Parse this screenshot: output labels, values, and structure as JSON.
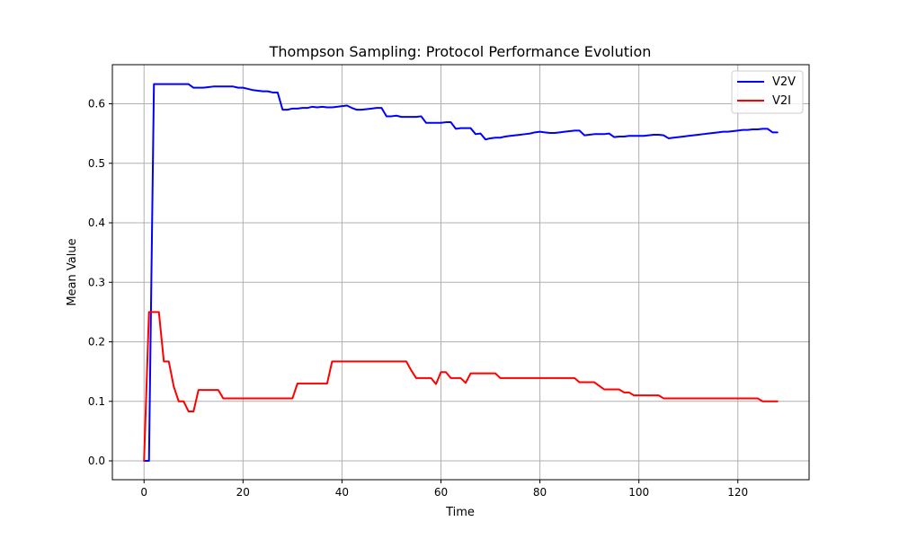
{
  "chart_data": {
    "type": "line",
    "title": "Thompson Sampling: Protocol Performance Evolution",
    "xlabel": "Time",
    "ylabel": "Mean Value",
    "xlim": [
      -6.4,
      134.4
    ],
    "ylim": [
      -0.0317,
      0.6657
    ],
    "xticks": [
      0,
      20,
      40,
      60,
      80,
      100,
      120
    ],
    "xtick_labels": [
      "0",
      "20",
      "40",
      "60",
      "80",
      "100",
      "120"
    ],
    "yticks": [
      0.0,
      0.1,
      0.2,
      0.3,
      0.4,
      0.5,
      0.6
    ],
    "ytick_labels": [
      "0.0",
      "0.1",
      "0.2",
      "0.3",
      "0.4",
      "0.5",
      "0.6"
    ],
    "grid": true,
    "legend_position": "top-right",
    "series": [
      {
        "name": "V2V",
        "color": "#0000ff",
        "points": [
          [
            0,
            0.0
          ],
          [
            1,
            0.0
          ],
          [
            2,
            0.633
          ],
          [
            3,
            0.633
          ],
          [
            4,
            0.633
          ],
          [
            5,
            0.633
          ],
          [
            6,
            0.633
          ],
          [
            7,
            0.633
          ],
          [
            8,
            0.633
          ],
          [
            9,
            0.633
          ],
          [
            10,
            0.627
          ],
          [
            11,
            0.627
          ],
          [
            12,
            0.627
          ],
          [
            13,
            0.628
          ],
          [
            14,
            0.629
          ],
          [
            15,
            0.629
          ],
          [
            16,
            0.629
          ],
          [
            17,
            0.629
          ],
          [
            18,
            0.629
          ],
          [
            19,
            0.627
          ],
          [
            20,
            0.627
          ],
          [
            21,
            0.625
          ],
          [
            22,
            0.623
          ],
          [
            23,
            0.622
          ],
          [
            24,
            0.621
          ],
          [
            25,
            0.621
          ],
          [
            26,
            0.619
          ],
          [
            27,
            0.619
          ],
          [
            28,
            0.59
          ],
          [
            29,
            0.59
          ],
          [
            30,
            0.592
          ],
          [
            31,
            0.592
          ],
          [
            32,
            0.593
          ],
          [
            33,
            0.593
          ],
          [
            34,
            0.595
          ],
          [
            35,
            0.594
          ],
          [
            36,
            0.595
          ],
          [
            37,
            0.594
          ],
          [
            38,
            0.594
          ],
          [
            39,
            0.595
          ],
          [
            40,
            0.596
          ],
          [
            41,
            0.597
          ],
          [
            42,
            0.593
          ],
          [
            43,
            0.59
          ],
          [
            44,
            0.59
          ],
          [
            45,
            0.591
          ],
          [
            46,
            0.592
          ],
          [
            47,
            0.593
          ],
          [
            48,
            0.593
          ],
          [
            49,
            0.579
          ],
          [
            50,
            0.579
          ],
          [
            51,
            0.58
          ],
          [
            52,
            0.578
          ],
          [
            53,
            0.578
          ],
          [
            54,
            0.578
          ],
          [
            55,
            0.578
          ],
          [
            56,
            0.579
          ],
          [
            57,
            0.568
          ],
          [
            58,
            0.568
          ],
          [
            59,
            0.568
          ],
          [
            60,
            0.568
          ],
          [
            61,
            0.569
          ],
          [
            62,
            0.569
          ],
          [
            63,
            0.558
          ],
          [
            64,
            0.559
          ],
          [
            65,
            0.559
          ],
          [
            66,
            0.559
          ],
          [
            67,
            0.549
          ],
          [
            68,
            0.55
          ],
          [
            69,
            0.54
          ],
          [
            70,
            0.542
          ],
          [
            71,
            0.543
          ],
          [
            72,
            0.543
          ],
          [
            73,
            0.545
          ],
          [
            74,
            0.546
          ],
          [
            75,
            0.547
          ],
          [
            76,
            0.548
          ],
          [
            77,
            0.549
          ],
          [
            78,
            0.55
          ],
          [
            79,
            0.552
          ],
          [
            80,
            0.553
          ],
          [
            81,
            0.552
          ],
          [
            82,
            0.551
          ],
          [
            83,
            0.551
          ],
          [
            84,
            0.552
          ],
          [
            85,
            0.553
          ],
          [
            86,
            0.554
          ],
          [
            87,
            0.555
          ],
          [
            88,
            0.555
          ],
          [
            89,
            0.547
          ],
          [
            90,
            0.548
          ],
          [
            91,
            0.549
          ],
          [
            92,
            0.549
          ],
          [
            93,
            0.549
          ],
          [
            94,
            0.55
          ],
          [
            95,
            0.544
          ],
          [
            96,
            0.545
          ],
          [
            97,
            0.545
          ],
          [
            98,
            0.546
          ],
          [
            99,
            0.546
          ],
          [
            100,
            0.546
          ],
          [
            101,
            0.546
          ],
          [
            102,
            0.547
          ],
          [
            103,
            0.548
          ],
          [
            104,
            0.548
          ],
          [
            105,
            0.547
          ],
          [
            106,
            0.542
          ],
          [
            107,
            0.543
          ],
          [
            108,
            0.544
          ],
          [
            109,
            0.545
          ],
          [
            110,
            0.546
          ],
          [
            111,
            0.547
          ],
          [
            112,
            0.548
          ],
          [
            113,
            0.549
          ],
          [
            114,
            0.55
          ],
          [
            115,
            0.551
          ],
          [
            116,
            0.552
          ],
          [
            117,
            0.553
          ],
          [
            118,
            0.553
          ],
          [
            119,
            0.554
          ],
          [
            120,
            0.555
          ],
          [
            121,
            0.556
          ],
          [
            122,
            0.556
          ],
          [
            123,
            0.557
          ],
          [
            124,
            0.557
          ],
          [
            125,
            0.558
          ],
          [
            126,
            0.558
          ],
          [
            127,
            0.552
          ],
          [
            128,
            0.552
          ]
        ]
      },
      {
        "name": "V2I",
        "color": "#ff0000",
        "points": [
          [
            0,
            0.0
          ],
          [
            1,
            0.25
          ],
          [
            2,
            0.25
          ],
          [
            3,
            0.25
          ],
          [
            4,
            0.167
          ],
          [
            5,
            0.167
          ],
          [
            6,
            0.125
          ],
          [
            7,
            0.1
          ],
          [
            8,
            0.1
          ],
          [
            9,
            0.083
          ],
          [
            10,
            0.083
          ],
          [
            11,
            0.119
          ],
          [
            12,
            0.119
          ],
          [
            13,
            0.119
          ],
          [
            14,
            0.119
          ],
          [
            15,
            0.119
          ],
          [
            16,
            0.105
          ],
          [
            17,
            0.105
          ],
          [
            18,
            0.105
          ],
          [
            19,
            0.105
          ],
          [
            20,
            0.105
          ],
          [
            21,
            0.105
          ],
          [
            22,
            0.105
          ],
          [
            23,
            0.105
          ],
          [
            24,
            0.105
          ],
          [
            25,
            0.105
          ],
          [
            26,
            0.105
          ],
          [
            27,
            0.105
          ],
          [
            28,
            0.105
          ],
          [
            29,
            0.105
          ],
          [
            30,
            0.105
          ],
          [
            31,
            0.13
          ],
          [
            32,
            0.13
          ],
          [
            33,
            0.13
          ],
          [
            34,
            0.13
          ],
          [
            35,
            0.13
          ],
          [
            36,
            0.13
          ],
          [
            37,
            0.13
          ],
          [
            38,
            0.167
          ],
          [
            39,
            0.167
          ],
          [
            40,
            0.167
          ],
          [
            41,
            0.167
          ],
          [
            42,
            0.167
          ],
          [
            43,
            0.167
          ],
          [
            44,
            0.167
          ],
          [
            45,
            0.167
          ],
          [
            46,
            0.167
          ],
          [
            47,
            0.167
          ],
          [
            48,
            0.167
          ],
          [
            49,
            0.167
          ],
          [
            50,
            0.167
          ],
          [
            51,
            0.167
          ],
          [
            52,
            0.167
          ],
          [
            53,
            0.167
          ],
          [
            54,
            0.152
          ],
          [
            55,
            0.139
          ],
          [
            56,
            0.139
          ],
          [
            57,
            0.139
          ],
          [
            58,
            0.139
          ],
          [
            59,
            0.129
          ],
          [
            60,
            0.149
          ],
          [
            61,
            0.149
          ],
          [
            62,
            0.139
          ],
          [
            63,
            0.139
          ],
          [
            64,
            0.139
          ],
          [
            65,
            0.131
          ],
          [
            66,
            0.147
          ],
          [
            67,
            0.147
          ],
          [
            68,
            0.147
          ],
          [
            69,
            0.147
          ],
          [
            70,
            0.147
          ],
          [
            71,
            0.147
          ],
          [
            72,
            0.139
          ],
          [
            73,
            0.139
          ],
          [
            74,
            0.139
          ],
          [
            75,
            0.139
          ],
          [
            76,
            0.139
          ],
          [
            77,
            0.139
          ],
          [
            78,
            0.139
          ],
          [
            79,
            0.139
          ],
          [
            80,
            0.139
          ],
          [
            81,
            0.139
          ],
          [
            82,
            0.139
          ],
          [
            83,
            0.139
          ],
          [
            84,
            0.139
          ],
          [
            85,
            0.139
          ],
          [
            86,
            0.139
          ],
          [
            87,
            0.139
          ],
          [
            88,
            0.132
          ],
          [
            89,
            0.132
          ],
          [
            90,
            0.132
          ],
          [
            91,
            0.132
          ],
          [
            92,
            0.126
          ],
          [
            93,
            0.12
          ],
          [
            94,
            0.12
          ],
          [
            95,
            0.12
          ],
          [
            96,
            0.12
          ],
          [
            97,
            0.115
          ],
          [
            98,
            0.115
          ],
          [
            99,
            0.11
          ],
          [
            100,
            0.11
          ],
          [
            101,
            0.11
          ],
          [
            102,
            0.11
          ],
          [
            103,
            0.11
          ],
          [
            104,
            0.11
          ],
          [
            105,
            0.105
          ],
          [
            106,
            0.105
          ],
          [
            107,
            0.105
          ],
          [
            108,
            0.105
          ],
          [
            109,
            0.105
          ],
          [
            110,
            0.105
          ],
          [
            111,
            0.105
          ],
          [
            112,
            0.105
          ],
          [
            113,
            0.105
          ],
          [
            114,
            0.105
          ],
          [
            115,
            0.105
          ],
          [
            116,
            0.105
          ],
          [
            117,
            0.105
          ],
          [
            118,
            0.105
          ],
          [
            119,
            0.105
          ],
          [
            120,
            0.105
          ],
          [
            121,
            0.105
          ],
          [
            122,
            0.105
          ],
          [
            123,
            0.105
          ],
          [
            124,
            0.105
          ],
          [
            125,
            0.1
          ],
          [
            126,
            0.1
          ],
          [
            127,
            0.1
          ],
          [
            128,
            0.1
          ]
        ]
      }
    ]
  }
}
